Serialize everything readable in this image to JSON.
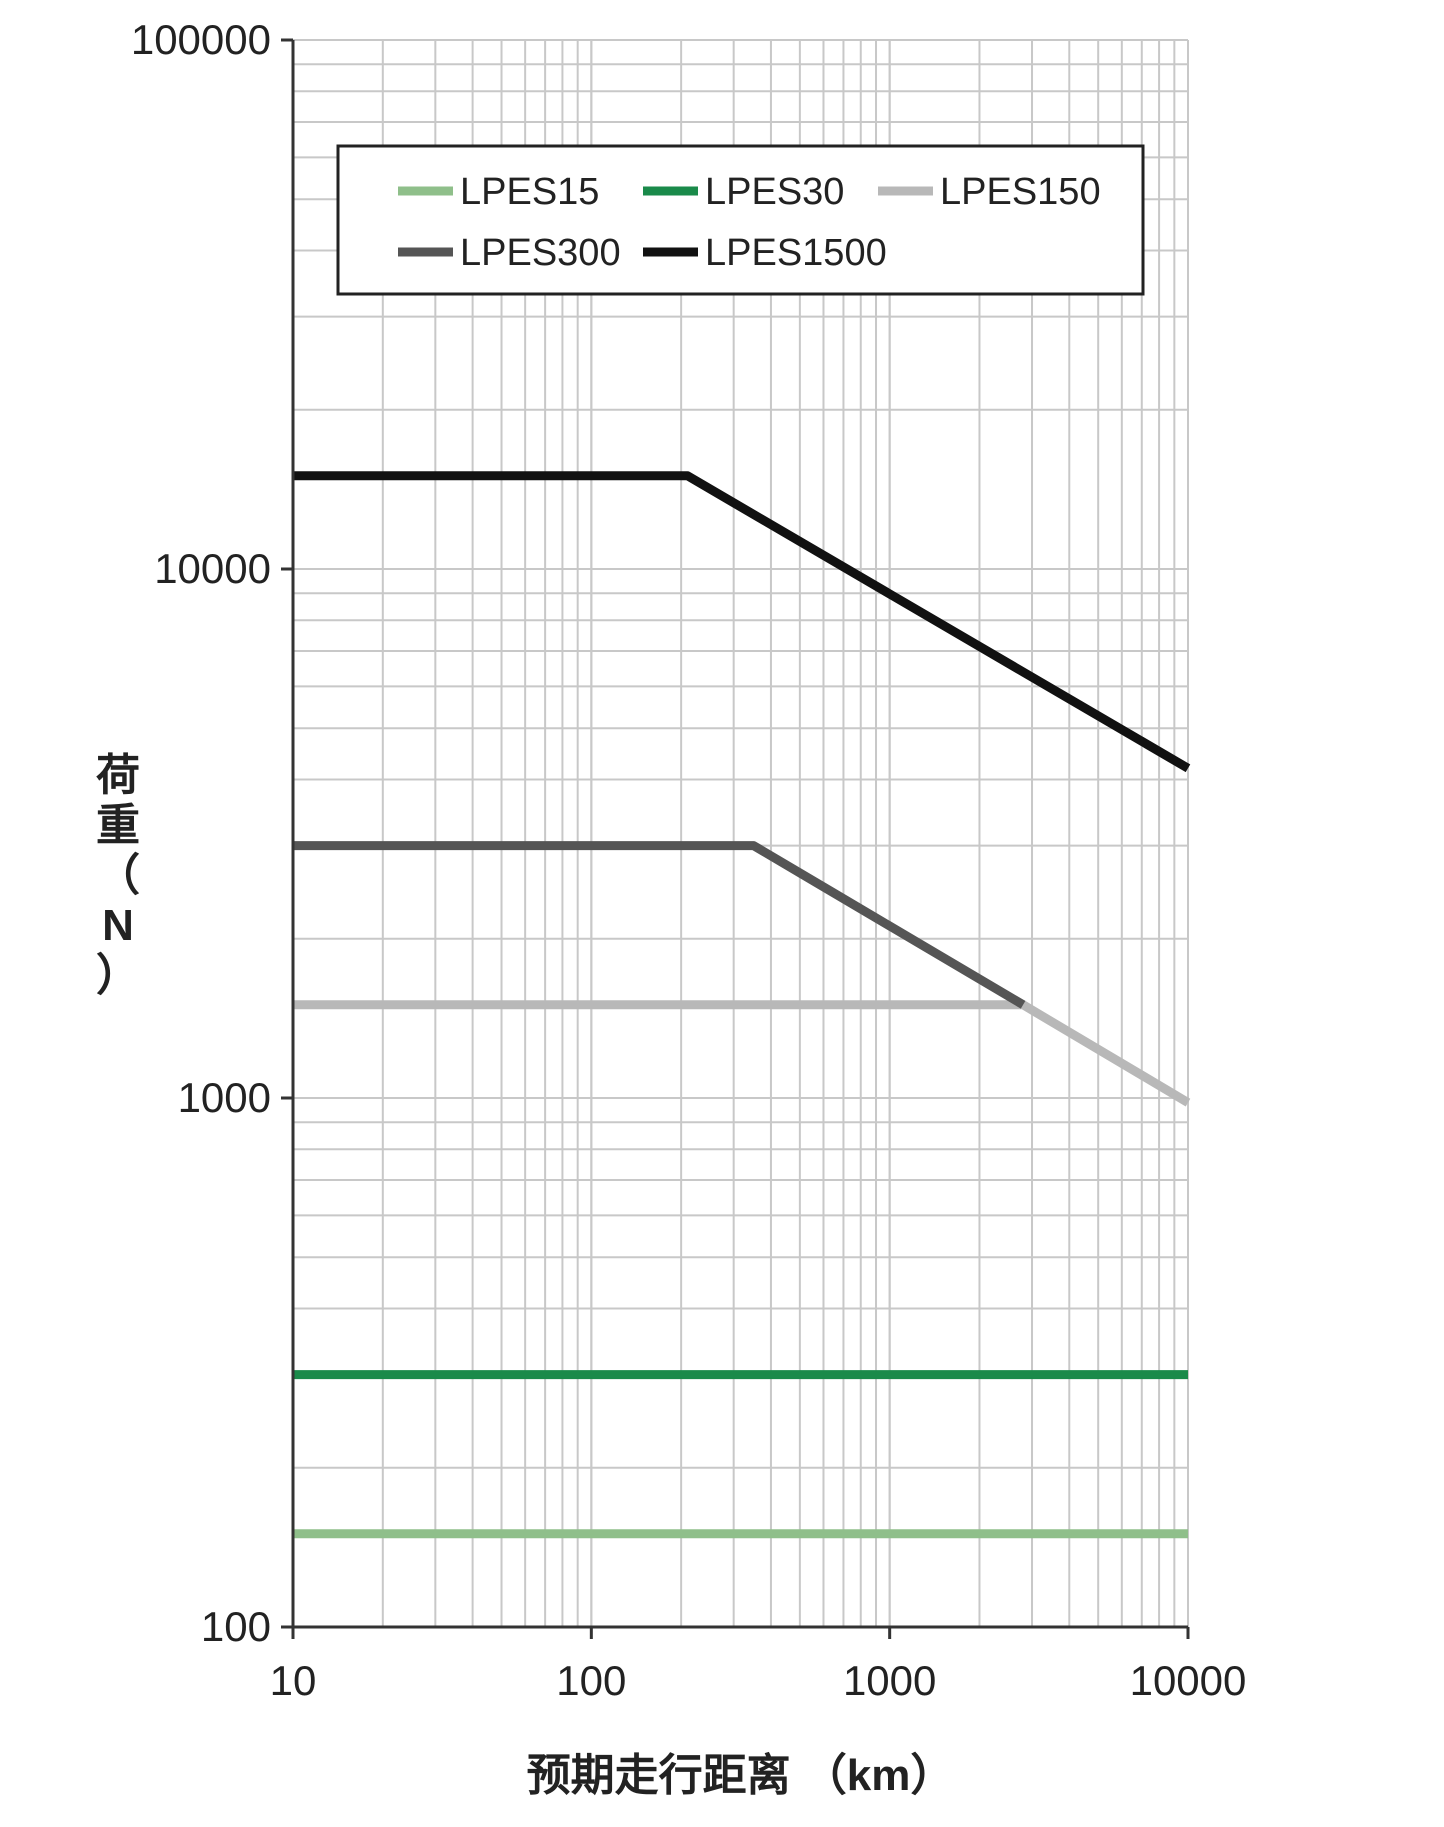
{
  "chart_data": {
    "type": "line",
    "title": "",
    "xlabel": "预期走行距离 （km）",
    "ylabel_lines": [
      "荷",
      "重",
      "（",
      "N",
      "）"
    ],
    "x_scale": "log",
    "y_scale": "log",
    "xlim": [
      10,
      10000
    ],
    "ylim": [
      100,
      100000
    ],
    "x_ticks": [
      10,
      100,
      1000,
      10000
    ],
    "x_tick_labels": [
      "10",
      "100",
      "1000",
      "10000"
    ],
    "y_ticks": [
      100,
      1000,
      10000,
      100000
    ],
    "y_tick_labels": [
      "100",
      "1000",
      "10000",
      "100000"
    ],
    "grid": true,
    "legend_position": "top-center",
    "series": [
      {
        "name": "LPES15",
        "color": "#8fbf8a",
        "x": [
          10,
          10000
        ],
        "y": [
          150,
          150
        ]
      },
      {
        "name": "LPES30",
        "color": "#1a8a4a",
        "x": [
          10,
          10000
        ],
        "y": [
          300,
          300
        ]
      },
      {
        "name": "LPES150",
        "color": "#b8b8b8",
        "x": [
          10,
          2800,
          10000
        ],
        "y": [
          1500,
          1500,
          980
        ]
      },
      {
        "name": "LPES300",
        "color": "#555555",
        "x": [
          10,
          350,
          2800
        ],
        "y": [
          3000,
          3000,
          1500
        ]
      },
      {
        "name": "LPES1500",
        "color": "#111111",
        "x": [
          10,
          210,
          10000
        ],
        "y": [
          15000,
          15000,
          4200
        ]
      }
    ]
  }
}
